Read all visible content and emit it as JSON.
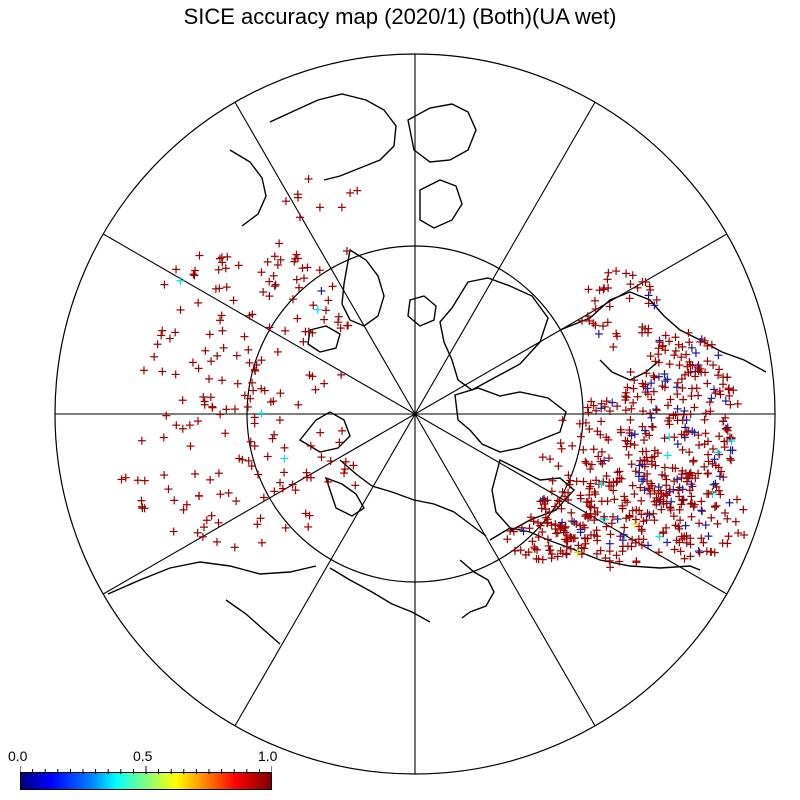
{
  "title": "SICE accuracy map (2020/1) (Both)(UA wet)",
  "colorbar": {
    "tick_labels": [
      "0.0",
      "0.5",
      "1.0"
    ],
    "min": 0.0,
    "max": 1.0,
    "colors": [
      "#000080",
      "#0000ff",
      "#0080ff",
      "#00ffff",
      "#80ff80",
      "#ffff00",
      "#ff8000",
      "#ff0000",
      "#800000"
    ]
  },
  "map": {
    "projection": "polar stereographic",
    "coastline_color": "#000000",
    "marker": "+",
    "marker_colors": {
      "high": "#9b0000",
      "low": "#1a1aa0",
      "mid_cyan": "#00e0e0",
      "mid_yellow": "#e0e000"
    }
  }
}
